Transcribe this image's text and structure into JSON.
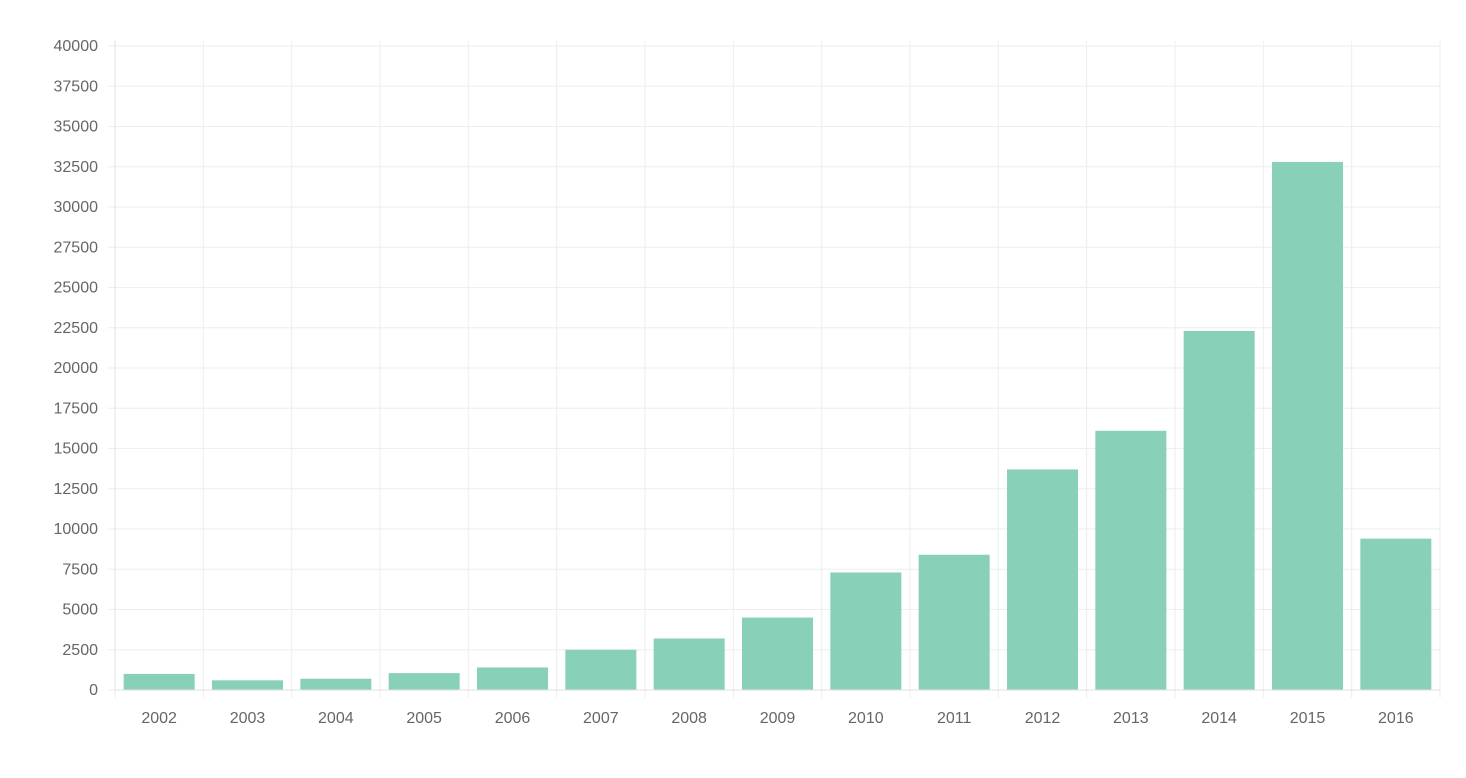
{
  "chart_data": {
    "type": "bar",
    "categories": [
      "2002",
      "2003",
      "2004",
      "2005",
      "2006",
      "2007",
      "2008",
      "2009",
      "2010",
      "2011",
      "2012",
      "2013",
      "2014",
      "2015",
      "2016"
    ],
    "values": [
      1000,
      600,
      700,
      1050,
      1400,
      2500,
      3200,
      4500,
      7300,
      8400,
      13700,
      16100,
      22300,
      32800,
      9400
    ],
    "title": "",
    "xlabel": "",
    "ylabel": "",
    "ylim": [
      0,
      40000
    ],
    "yticks": [
      "0",
      "2500",
      "5000",
      "7500",
      "10000",
      "12500",
      "15000",
      "17500",
      "20000",
      "22500",
      "25000",
      "27500",
      "30000",
      "32500",
      "35000",
      "37500",
      "40000"
    ],
    "grid": true,
    "legend": "none",
    "bar_color": "#88d1b8"
  }
}
